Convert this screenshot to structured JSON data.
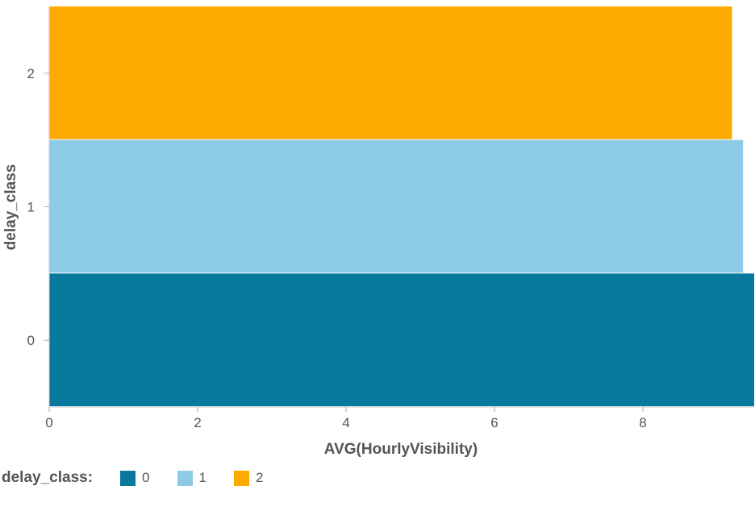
{
  "chart_data": {
    "type": "bar",
    "orientation": "horizontal",
    "categories": [
      "0",
      "1",
      "2"
    ],
    "values": [
      9.5,
      9.35,
      9.2
    ],
    "xlabel": "AVG(HourlyVisibility)",
    "ylabel": "delay_class",
    "xlim": [
      0,
      9.5
    ],
    "xticks": [
      "0",
      "2",
      "4",
      "6",
      "8"
    ],
    "grid": true,
    "legend": {
      "title": "delay_class:",
      "placement": "bottom-left",
      "items": [
        "0",
        "1",
        "2"
      ]
    },
    "colors": [
      "#07799c",
      "#8ccae6",
      "#ffaa00"
    ]
  }
}
